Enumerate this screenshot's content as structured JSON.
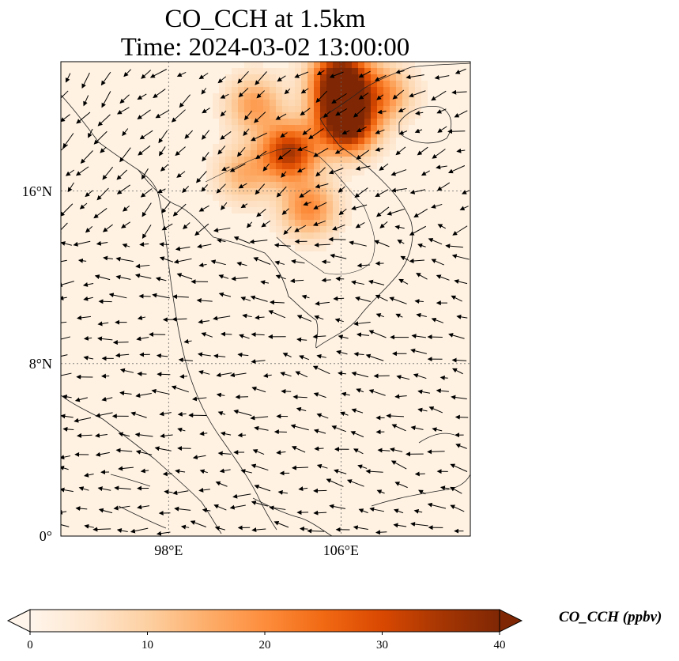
{
  "title_line1": "CO_CCH at 1.5km",
  "title_line2": "Time: 2024-03-02 13:00:00",
  "map": {
    "lon_range": [
      93,
      112
    ],
    "lat_range": [
      0,
      22
    ],
    "gridlines": "dotted",
    "coastlines": true,
    "wind_vectors": true,
    "x_ticks": [
      {
        "value": 98,
        "label": "98°E"
      },
      {
        "value": 106,
        "label": "106°E"
      }
    ],
    "y_ticks": [
      {
        "value": 16,
        "label": "16°N"
      },
      {
        "value": 8,
        "label": "8°N"
      },
      {
        "value": 0,
        "label": "0°"
      }
    ],
    "hotspots": [
      {
        "lon": 103.6,
        "lat": 17.8,
        "value": 32
      },
      {
        "lon": 104.5,
        "lat": 15.2,
        "value": 18
      },
      {
        "lon": 106.0,
        "lat": 20.0,
        "value": 26
      },
      {
        "lon": 106.0,
        "lat": 21.3,
        "value": 38
      },
      {
        "lon": 106.3,
        "lat": 19.0,
        "value": 35
      },
      {
        "lon": 102.0,
        "lat": 20.0,
        "value": 15
      },
      {
        "lon": 101.5,
        "lat": 16.8,
        "value": 12
      },
      {
        "lon": 108.0,
        "lat": 20.5,
        "value": 16
      }
    ]
  },
  "colorbar": {
    "label": "CO_CCH (ppbv)",
    "min": 0,
    "max": 40,
    "extend": "both",
    "ticks": [
      "0",
      "10",
      "20",
      "30",
      "40"
    ],
    "colormap": [
      "#fff5eb",
      "#fee6ce",
      "#fdd0a2",
      "#fdae6b",
      "#fd8d3c",
      "#f16913",
      "#d94801",
      "#a63603",
      "#7f2704"
    ],
    "cmap_name": "OrRd"
  }
}
